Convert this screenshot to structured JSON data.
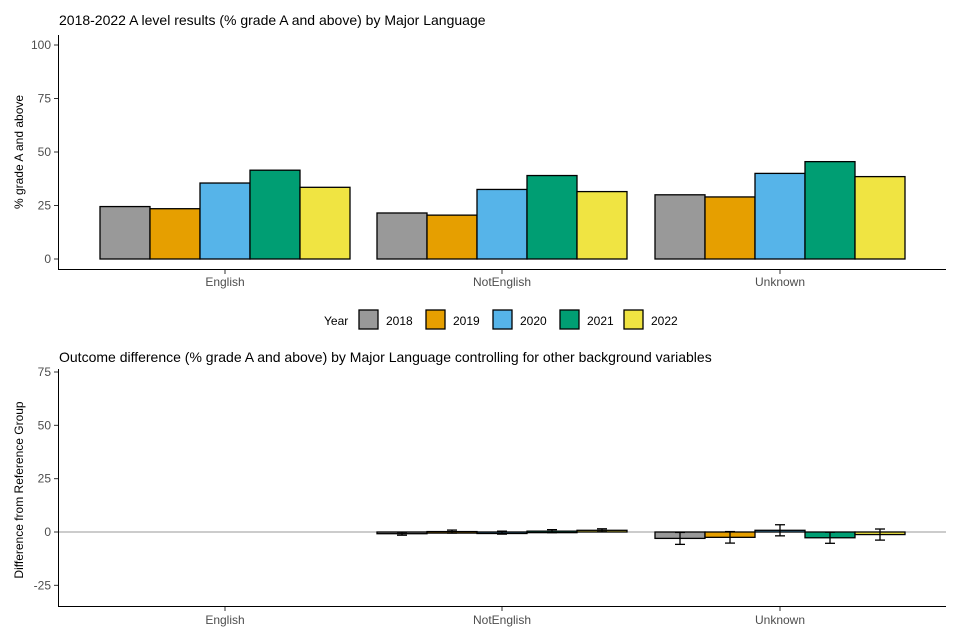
{
  "chart_data": [
    {
      "type": "bar",
      "title": "2018-2022 A level results (% grade A and above) by Major Language",
      "xlabel": "",
      "ylabel": "% grade A and above",
      "ylim": [
        0,
        100
      ],
      "yticks": [
        0,
        25,
        50,
        75,
        100
      ],
      "categories": [
        "English",
        "NotEnglish",
        "Unknown"
      ],
      "series": [
        {
          "name": "2018",
          "color": "#999999",
          "values": [
            24.5,
            21.5,
            30.0
          ]
        },
        {
          "name": "2019",
          "color": "#E69F00",
          "values": [
            23.5,
            20.5,
            29.0
          ]
        },
        {
          "name": "2020",
          "color": "#56B4E9",
          "values": [
            35.5,
            32.5,
            40.0
          ]
        },
        {
          "name": "2021",
          "color": "#009E73",
          "values": [
            41.5,
            39.0,
            45.5
          ]
        },
        {
          "name": "2022",
          "color": "#F0E442",
          "values": [
            33.5,
            31.5,
            38.5
          ]
        }
      ]
    },
    {
      "type": "bar",
      "title": "Outcome difference (% grade A and above) by Major Language controlling for other background variables",
      "xlabel": "",
      "ylabel": "Difference from Reference Group",
      "ylim": [
        -35,
        75
      ],
      "yticks": [
        -25,
        0,
        25,
        50,
        75
      ],
      "categories": [
        "English",
        "NotEnglish",
        "Unknown"
      ],
      "series": [
        {
          "name": "2018",
          "color": "#999999",
          "values": [
            null,
            -0.8,
            -3.0
          ],
          "err_low": [
            null,
            -1.5,
            -5.8
          ],
          "err_high": [
            null,
            -0.1,
            -0.2
          ]
        },
        {
          "name": "2019",
          "color": "#E69F00",
          "values": [
            null,
            0.2,
            -2.5
          ],
          "err_low": [
            null,
            -0.5,
            -5.2
          ],
          "err_high": [
            null,
            0.9,
            0.2
          ]
        },
        {
          "name": "2020",
          "color": "#56B4E9",
          "values": [
            null,
            -0.3,
            0.8
          ],
          "err_low": [
            null,
            -1.0,
            -1.8
          ],
          "err_high": [
            null,
            0.4,
            3.4
          ]
        },
        {
          "name": "2021",
          "color": "#009E73",
          "values": [
            null,
            0.4,
            -2.7
          ],
          "err_low": [
            null,
            -0.3,
            -5.3
          ],
          "err_high": [
            null,
            1.1,
            -0.1
          ]
        },
        {
          "name": "2022",
          "color": "#F0E442",
          "values": [
            null,
            0.8,
            -1.2
          ],
          "err_low": [
            null,
            0.1,
            -3.8
          ],
          "err_high": [
            null,
            1.5,
            1.4
          ]
        }
      ]
    }
  ],
  "legend": {
    "title": "Year",
    "items": [
      "2018",
      "2019",
      "2020",
      "2021",
      "2022"
    ]
  }
}
